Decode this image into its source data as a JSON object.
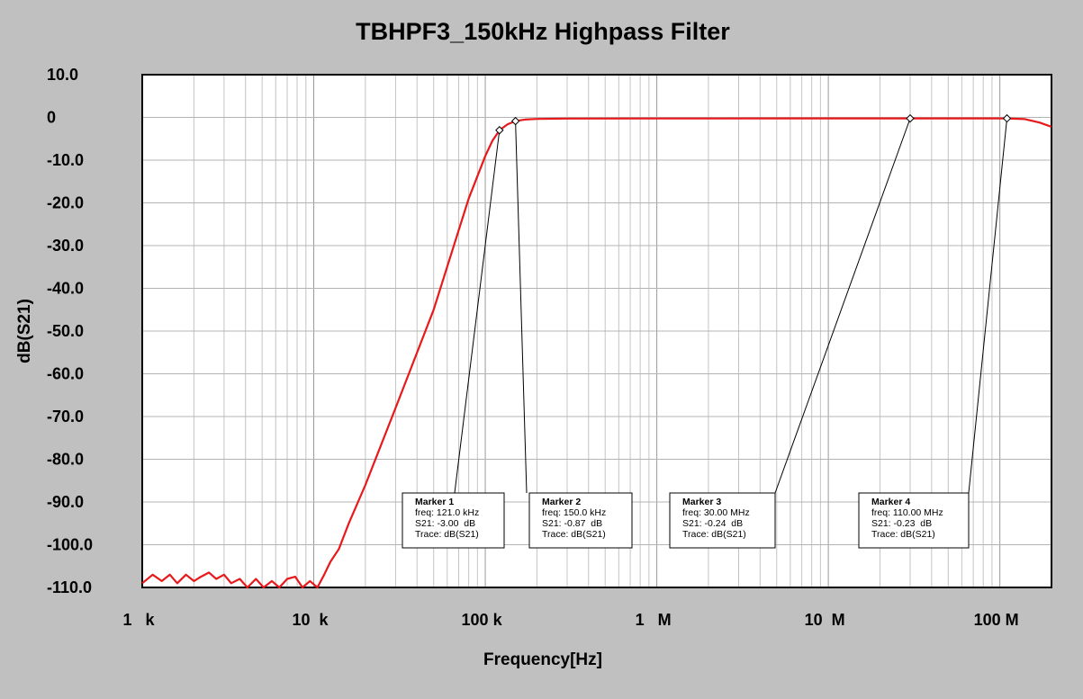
{
  "chart_data": {
    "type": "line",
    "title": "TBHPF3_150kHz  Highpass Filter",
    "xlabel": "Frequency[Hz]",
    "ylabel": "dB(S21)",
    "x_scale": "log",
    "xlim": [
      1000,
      200000000
    ],
    "ylim": [
      -110,
      10
    ],
    "grid": true,
    "x_ticks": [
      {
        "value": 1000,
        "label": "1   k"
      },
      {
        "value": 10000,
        "label": "10  k"
      },
      {
        "value": 100000,
        "label": "100 k"
      },
      {
        "value": 1000000,
        "label": "1   M"
      },
      {
        "value": 10000000,
        "label": "10  M"
      },
      {
        "value": 100000000,
        "label": "100 M"
      }
    ],
    "y_ticks": [
      {
        "value": 10,
        "label": "10.0"
      },
      {
        "value": 0,
        "label": "0"
      },
      {
        "value": -10,
        "label": "-10.0"
      },
      {
        "value": -20,
        "label": "-20.0"
      },
      {
        "value": -30,
        "label": "-30.0"
      },
      {
        "value": -40,
        "label": "-40.0"
      },
      {
        "value": -50,
        "label": "-50.0"
      },
      {
        "value": -60,
        "label": "-60.0"
      },
      {
        "value": -70,
        "label": "-70.0"
      },
      {
        "value": -80,
        "label": "-80.0"
      },
      {
        "value": -90,
        "label": "-90.0"
      },
      {
        "value": -100,
        "label": "-100.0"
      },
      {
        "value": -110,
        "label": "-110.0"
      }
    ],
    "series": [
      {
        "color": "#e8191b",
        "x": [
          1000,
          1150,
          1300,
          1450,
          1600,
          1800,
          2000,
          2200,
          2450,
          2700,
          3000,
          3300,
          3700,
          4100,
          4600,
          5100,
          5700,
          6300,
          7000,
          7800,
          8600,
          9500,
          10500,
          11500,
          12500,
          14000,
          16000,
          20000,
          30000,
          50000,
          80000,
          100000,
          110000,
          121000,
          135000,
          150000,
          170000,
          200000,
          300000,
          1000000,
          10000000,
          30000000,
          110000000,
          140000000,
          170000000,
          200000000
        ],
        "y": [
          -109,
          -107,
          -108.5,
          -107,
          -109,
          -107,
          -108.5,
          -107.5,
          -106.5,
          -108,
          -107,
          -109,
          -108,
          -110,
          -108,
          -110,
          -108.5,
          -110,
          -108,
          -107.5,
          -110,
          -108.5,
          -110,
          -107,
          -104,
          -101,
          -95,
          -86,
          -68,
          -45,
          -19,
          -9,
          -5.5,
          -3.0,
          -1.6,
          -0.87,
          -0.5,
          -0.35,
          -0.28,
          -0.25,
          -0.24,
          -0.24,
          -0.23,
          -0.4,
          -1.2,
          -2.2
        ]
      }
    ],
    "markers": [
      {
        "name": "Marker 1",
        "freq_text": "freq: 121.0 kHz",
        "s21_text": "S21: -3.00  dB",
        "trace_text": "Trace: dB(S21)",
        "x": 121000,
        "y": -3.0
      },
      {
        "name": "Marker 2",
        "freq_text": "freq: 150.0 kHz",
        "s21_text": "S21: -0.87  dB",
        "trace_text": "Trace: dB(S21)",
        "x": 150000,
        "y": -0.87
      },
      {
        "name": "Marker 3",
        "freq_text": "freq: 30.00 MHz",
        "s21_text": "S21: -0.24  dB",
        "trace_text": "Trace: dB(S21)",
        "x": 30000000,
        "y": -0.24
      },
      {
        "name": "Marker 4",
        "freq_text": "freq: 110.00 MHz",
        "s21_text": "S21: -0.23  dB",
        "trace_text": "Trace: dB(S21)",
        "x": 110000000,
        "y": -0.23
      }
    ]
  }
}
